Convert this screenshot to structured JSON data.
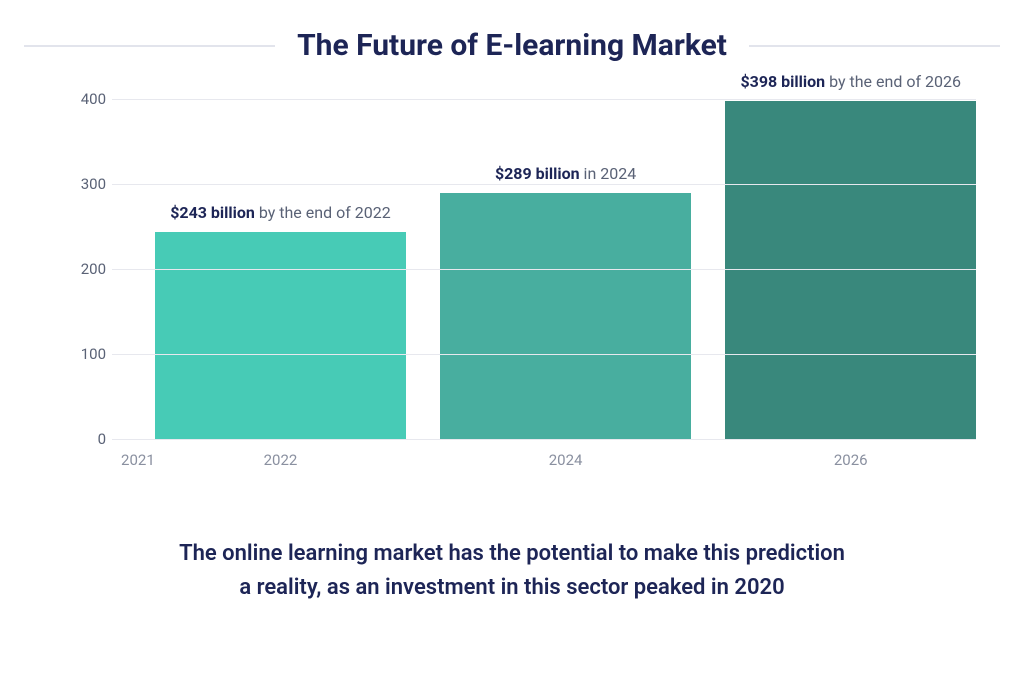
{
  "title": "The Future of E-learning Market",
  "chart": {
    "type": "bar",
    "background_color": "#ffffff",
    "grid_color": "#e7e8ee",
    "axis_label_color": "#5a6276",
    "x_tick_color": "#8a90a0",
    "ylim": [
      0,
      400
    ],
    "yticks": [
      0,
      100,
      200,
      300,
      400
    ],
    "xticks": [
      {
        "label": "2021",
        "pos_pct": 3.0
      },
      {
        "label": "2022",
        "pos_pct": 19.5
      },
      {
        "label": "2024",
        "pos_pct": 52.5
      },
      {
        "label": "2026",
        "pos_pct": 85.5
      }
    ],
    "bar_width_pct": 29.0,
    "bars": [
      {
        "value": 243,
        "color": "#47cbb6",
        "left_pct": 5.0,
        "label_bold": "$243 billion",
        "label_rest": " by the end of 2022"
      },
      {
        "value": 289,
        "color": "#48ae9f",
        "left_pct": 38.0,
        "label_bold": "$289 billion",
        "label_rest": " in 2024"
      },
      {
        "value": 398,
        "color": "#39887c",
        "left_pct": 71.0,
        "label_bold": "$398 billion",
        "label_rest": " by the end of 2026"
      }
    ]
  },
  "caption_line1": "The online learning market has the potential to make this prediction",
  "caption_line2": "a reality, as an investment in this sector peaked in 2020"
}
